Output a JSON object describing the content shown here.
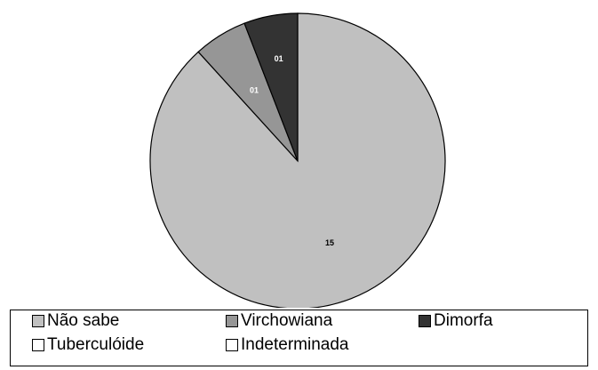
{
  "chart_data": {
    "type": "pie",
    "title": "",
    "slices": [
      {
        "label": "Não sabe",
        "value": 15,
        "value_label": "15",
        "color": "#c0c0c0",
        "label_color": "#000000"
      },
      {
        "label": "Virchowiana",
        "value": 1,
        "value_label": "01",
        "color": "#969696",
        "label_color": "#ffffff"
      },
      {
        "label": "Dimorfa",
        "value": 1,
        "value_label": "01",
        "color": "#333333",
        "label_color": "#ffffff"
      },
      {
        "label": "Tuberculóide",
        "value": 0,
        "value_label": "",
        "color": "#ffffff",
        "label_color": "#000000"
      },
      {
        "label": "Indeterminada",
        "value": 0,
        "value_label": "",
        "color": "#ffffff",
        "label_color": "#000000"
      }
    ],
    "legend_position": "bottom",
    "start_angle_deg": 0,
    "direction": "clockwise"
  }
}
